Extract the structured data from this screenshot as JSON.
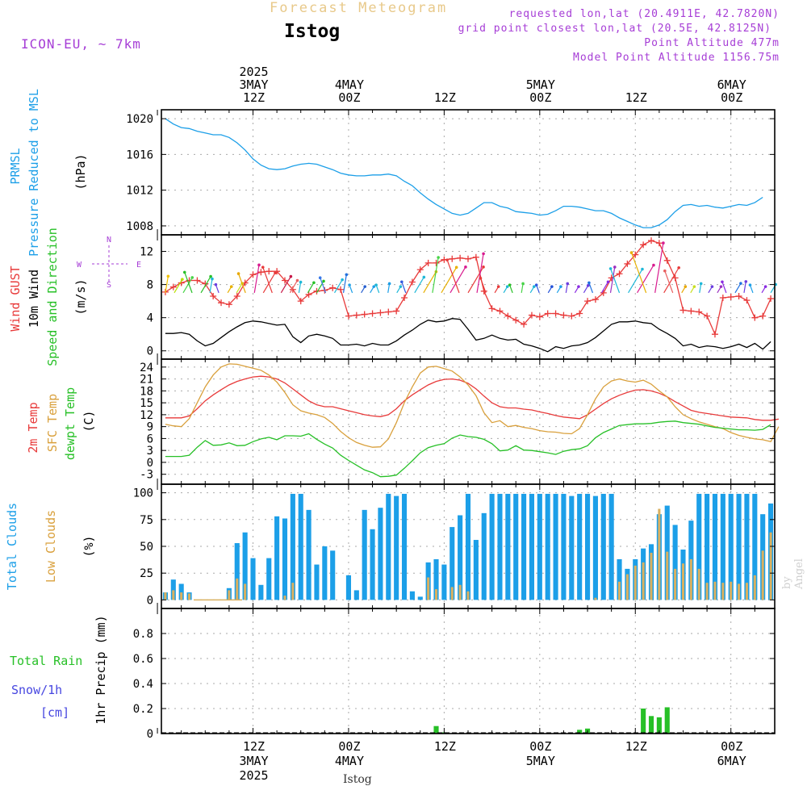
{
  "header": {
    "app_title": "Forecast Meteogram",
    "station": "Istog",
    "model": "ICON-EU, ~ 7km",
    "requested": "requested lon,lat (20.4911E, 42.7820N)",
    "grid_point": "grid point closest lon,lat (20.5E, 42.8125N)",
    "point_altitude": "Point Altitude 477m",
    "model_altitude": "Model Point Altitude 1156.75m",
    "footer_station": "Istog",
    "watermark": "by Angel"
  },
  "colors": {
    "pressure": "#1c9fe8",
    "gust": "#e83a3a",
    "wind": "#000000",
    "temp2m": "#e83a3a",
    "sfc_temp": "#d9a03c",
    "dewpt": "#27c027",
    "total_clouds": "#1c9fe8",
    "low_clouds": "#d9b060",
    "rain": "#27c027",
    "snow": "#4646e0",
    "header_purple": "#a63dd6"
  },
  "time_axis": {
    "top_labels": [
      {
        "lines": [
          "2025",
          "3MAY",
          "12Z"
        ],
        "t": 12
      },
      {
        "lines": [
          "4MAY",
          "00Z"
        ],
        "t": 24
      },
      {
        "lines": [
          "12Z"
        ],
        "t": 36
      },
      {
        "lines": [
          "5MAY",
          "00Z"
        ],
        "t": 48
      },
      {
        "lines": [
          "12Z"
        ],
        "t": 60
      },
      {
        "lines": [
          "6MAY",
          "00Z"
        ],
        "t": 72
      }
    ],
    "bottom_labels": [
      {
        "lines": [
          "12Z",
          "3MAY",
          "2025"
        ],
        "t": 12
      },
      {
        "lines": [
          "00Z",
          "4MAY"
        ],
        "t": 24
      },
      {
        "lines": [
          "12Z"
        ],
        "t": 36
      },
      {
        "lines": [
          "00Z",
          "5MAY"
        ],
        "t": 48
      },
      {
        "lines": [
          "12Z"
        ],
        "t": 60
      },
      {
        "lines": [
          "00Z",
          "6MAY"
        ],
        "t": 72
      }
    ]
  },
  "panels": {
    "pressure": {
      "labels": [
        {
          "text": "PRMSL",
          "color": "#1c9fe8"
        },
        {
          "text": "Pressure Reduced to MSL",
          "color": "#1c9fe8"
        }
      ],
      "unit": "(hPa)"
    },
    "wind": {
      "labels": [
        {
          "text": "Wind GUST",
          "color": "#e83a3a"
        },
        {
          "text": "10m Wind",
          "color": "#000000"
        },
        {
          "text": "Speed and Direction",
          "color": "#27c027"
        }
      ],
      "unit": "(m/s)",
      "compass": {
        "n": "N",
        "s": "S",
        "e": "E",
        "w": "W"
      }
    },
    "temperature": {
      "labels": [
        {
          "text": "2m Temp",
          "color": "#e83a3a"
        },
        {
          "text": "SFC Temp",
          "color": "#d9a03c"
        },
        {
          "text": "dewpt Temp",
          "color": "#27c027"
        }
      ],
      "unit": "(C)"
    },
    "clouds": {
      "labels": [
        {
          "text": "Total Clouds",
          "color": "#1c9fe8"
        },
        {
          "text": "Low Clouds",
          "color": "#d9a03c"
        }
      ],
      "unit": "(%)"
    },
    "precip": {
      "labels": [
        {
          "text": "Total  Rain",
          "color": "#27c027"
        },
        {
          "text": "Snow/1h",
          "color": "#4646e0"
        },
        {
          "text": "[cm]",
          "color": "#4646e0"
        }
      ],
      "unit": "1hr Precip (mm)"
    }
  },
  "chart_data": [
    {
      "type": "line",
      "title": "PRMSL Pressure Reduced to MSL",
      "ylabel": "(hPa)",
      "x_start_hour": 1,
      "x_step_hours": 1,
      "ylim": [
        1007,
        1021
      ],
      "yticks": [
        1008,
        1012,
        1016,
        1020
      ],
      "grid": true,
      "series": [
        {
          "name": "PRMSL",
          "values": [
            1020.0,
            1019.4,
            1019.0,
            1018.9,
            1018.6,
            1018.4,
            1018.2,
            1018.2,
            1017.9,
            1017.3,
            1016.5,
            1015.5,
            1014.8,
            1014.4,
            1014.3,
            1014.4,
            1014.7,
            1014.9,
            1015.0,
            1014.9,
            1014.6,
            1014.3,
            1013.9,
            1013.7,
            1013.6,
            1013.6,
            1013.7,
            1013.7,
            1013.8,
            1013.6,
            1013.0,
            1012.5,
            1011.7,
            1011.0,
            1010.4,
            1009.9,
            1009.4,
            1009.2,
            1009.4,
            1010.0,
            1010.6,
            1010.6,
            1010.2,
            1010.0,
            1009.6,
            1009.5,
            1009.4,
            1009.2,
            1009.3,
            1009.7,
            1010.2,
            1010.2,
            1010.1,
            1009.9,
            1009.7,
            1009.7,
            1009.4,
            1008.9,
            1008.5,
            1008.1,
            1007.8,
            1007.8,
            1008.1,
            1008.7,
            1009.6,
            1010.3,
            1010.4,
            1010.2,
            1010.3,
            1010.1,
            1010.0,
            1010.2,
            1010.4,
            1010.3,
            1010.6,
            1011.2
          ]
        }
      ]
    },
    {
      "type": "line",
      "title": "Wind GUST / 10m Wind Speed and Direction",
      "ylabel": "(m/s)",
      "x_start_hour": 1,
      "x_step_hours": 1,
      "ylim": [
        -1,
        14
      ],
      "yticks": [
        0,
        4,
        8,
        12
      ],
      "grid": true,
      "series": [
        {
          "name": "Wind GUST",
          "values": [
            7.1,
            7.7,
            8.2,
            8.5,
            8.5,
            8.1,
            6.6,
            5.8,
            5.6,
            6.6,
            8.2,
            9.2,
            9.5,
            9.6,
            9.6,
            8.5,
            7.4,
            6.0,
            6.8,
            7.2,
            7.3,
            7.6,
            7.4,
            4.2,
            4.3,
            4.4,
            4.5,
            4.6,
            4.7,
            4.8,
            6.4,
            8.3,
            9.8,
            10.6,
            10.6,
            11.0,
            11.1,
            11.2,
            11.1,
            11.3,
            7.2,
            5.1,
            4.8,
            4.2,
            3.7,
            3.2,
            4.3,
            4.1,
            4.5,
            4.5,
            4.3,
            4.2,
            4.5,
            6.0,
            6.2,
            7.0,
            8.8,
            9.3,
            10.5,
            11.6,
            12.8,
            13.3,
            13.0,
            10.9,
            8.8,
            4.9,
            4.8,
            4.7,
            4.2,
            2.0,
            6.4,
            6.5,
            6.6,
            6.1,
            4.0,
            4.2,
            6.3
          ]
        },
        {
          "name": "10m Wind",
          "values": [
            2.1,
            2.1,
            2.2,
            2.0,
            1.2,
            0.6,
            0.9,
            1.6,
            2.3,
            2.9,
            3.4,
            3.6,
            3.5,
            3.3,
            3.1,
            3.2,
            1.7,
            1.0,
            1.8,
            2.0,
            1.8,
            1.5,
            0.7,
            0.7,
            0.8,
            0.6,
            0.9,
            0.7,
            0.7,
            1.2,
            1.9,
            2.5,
            3.2,
            3.7,
            3.5,
            3.6,
            3.9,
            3.8,
            2.6,
            1.3,
            1.5,
            1.9,
            1.5,
            1.3,
            1.4,
            0.8,
            0.6,
            0.3,
            -0.1,
            0.5,
            0.3,
            0.6,
            0.7,
            1.0,
            1.6,
            2.4,
            3.2,
            3.5,
            3.5,
            3.6,
            3.4,
            3.3,
            2.6,
            2.1,
            1.5,
            0.6,
            0.8,
            0.4,
            0.6,
            0.5,
            0.3,
            0.5,
            0.8,
            0.4,
            0.9,
            0.2,
            1.1
          ]
        }
      ],
      "wind_arrow_colors": [
        "#f2c200",
        "#b7e000",
        "#48d448",
        "#27c027",
        "#27c027",
        "#1fb8d8",
        "#6b3ee0",
        "#e8b000",
        "#c8e020",
        "#e8a800",
        "#d81b8f",
        "#e83a3a",
        "#e83a3a",
        "#c81848",
        "#e86060",
        "#1fb8d8",
        "#27c027",
        "#27c027",
        "#3878e8",
        "#1fb8d8",
        "#2070e0",
        "#1c9fe8",
        "#2860d0",
        "#1c9fe8",
        "#1fb8d8",
        "#1c9fe8",
        "#1fb8d8",
        "#3058e0",
        "#1fb8d8",
        "#e8b000",
        "#48d448",
        "#e8b000",
        "#d81b8f",
        "#e83a3a",
        "#e83a3a",
        "#d81b8f",
        "#e83a3a",
        "#e83a3a",
        "#1fb8d8",
        "#27c027",
        "#48d448",
        "#1fb8d8",
        "#3058e0",
        "#2050d8",
        "#1c9fe8",
        "#6b3ee0",
        "#8a2be2",
        "#6b3ee0",
        "#2070e0",
        "#8a2be2",
        "#9b30c0",
        "#1fb8d8",
        "#1fb8d8",
        "#d81b8f",
        "#e8b000",
        "#d81b8f",
        "#e83a3a",
        "#e86060",
        "#e8a800",
        "#c8e020",
        "#1fb8d8",
        "#6b3ee0",
        "#9b30c0",
        "#8a2be2",
        "#2070e0",
        "#6b3ee0",
        "#1c9fe8",
        "#8a2be2",
        "#1fb8d8"
      ]
    },
    {
      "type": "line",
      "title": "2m Temp / SFC Temp / dewpt Temp",
      "ylabel": "(C)",
      "x_start_hour": 1,
      "x_step_hours": 1,
      "ylim": [
        -5.5,
        26
      ],
      "yticks": [
        -3,
        0,
        3,
        6,
        9,
        12,
        15,
        18,
        21,
        24
      ],
      "grid": true,
      "series": [
        {
          "name": "2m Temp",
          "values": [
            11.2,
            11.2,
            11.2,
            11.7,
            13.5,
            15.5,
            17.0,
            18.3,
            19.5,
            20.4,
            21.0,
            21.5,
            21.7,
            21.5,
            21.0,
            20.0,
            18.5,
            17.0,
            15.5,
            14.5,
            14.0,
            14.0,
            13.5,
            13.0,
            12.5,
            12.0,
            11.7,
            11.5,
            12.0,
            13.5,
            15.5,
            17.0,
            18.3,
            19.5,
            20.4,
            20.9,
            21.0,
            20.7,
            19.9,
            18.5,
            16.7,
            15.0,
            14.0,
            13.7,
            13.7,
            13.4,
            13.2,
            12.7,
            12.3,
            11.8,
            11.4,
            11.2,
            11.0,
            12.0,
            13.4,
            14.8,
            16.0,
            16.9,
            17.6,
            18.2,
            18.3,
            18.0,
            17.4,
            16.5,
            15.3,
            14.2,
            13.1,
            12.6,
            12.3,
            12.0,
            11.7,
            11.4,
            11.3,
            11.2,
            10.8,
            10.6,
            10.6,
            10.9
          ]
        },
        {
          "name": "SFC Temp",
          "values": [
            9.6,
            9.2,
            9.0,
            11.0,
            15.0,
            19.0,
            22.0,
            24.0,
            24.8,
            24.7,
            24.2,
            23.7,
            23.2,
            22.0,
            20.2,
            17.6,
            14.5,
            13.0,
            12.4,
            12.0,
            11.3,
            9.8,
            7.8,
            6.2,
            5.0,
            4.3,
            3.8,
            3.9,
            5.9,
            10.0,
            15.0,
            19.0,
            22.5,
            24.0,
            24.2,
            23.6,
            23.0,
            21.5,
            19.5,
            16.8,
            12.5,
            10.0,
            10.5,
            9.0,
            9.3,
            8.8,
            8.5,
            8.0,
            7.7,
            7.6,
            7.3,
            7.2,
            8.5,
            12.0,
            16.0,
            19.0,
            20.5,
            21.0,
            20.5,
            20.2,
            20.7,
            19.7,
            18.0,
            16.5,
            14.0,
            12.0,
            11.0,
            10.2,
            9.6,
            9.0,
            8.5,
            7.5,
            6.8,
            6.3,
            5.9,
            5.7,
            5.2,
            9.0
          ]
        },
        {
          "name": "dewpt Temp",
          "values": [
            1.5,
            1.5,
            1.5,
            1.8,
            3.8,
            5.5,
            4.3,
            4.4,
            4.9,
            4.2,
            4.3,
            5.2,
            5.9,
            6.3,
            5.7,
            6.7,
            6.7,
            6.6,
            7.2,
            5.8,
            4.6,
            3.6,
            1.8,
            0.5,
            -0.7,
            -1.9,
            -2.6,
            -3.6,
            -3.5,
            -3.2,
            -1.5,
            0.4,
            2.4,
            3.7,
            4.3,
            4.7,
            6.1,
            6.9,
            6.5,
            6.3,
            5.8,
            4.7,
            2.9,
            3.1,
            4.2,
            3.1,
            3.0,
            2.7,
            2.4,
            2.0,
            2.8,
            3.2,
            3.4,
            4.2,
            6.2,
            7.5,
            8.4,
            9.3,
            9.5,
            9.7,
            9.7,
            9.8,
            10.1,
            10.3,
            10.4,
            10.0,
            9.8,
            9.6,
            9.2,
            8.8,
            8.6,
            8.4,
            8.2,
            8.2,
            8.1,
            8.3,
            9.5
          ]
        }
      ]
    },
    {
      "type": "bar",
      "title": "Total Clouds / Low Clouds",
      "ylabel": "(%)",
      "x_start_hour": 1,
      "x_step_hours": 1,
      "ylim": [
        -8,
        108
      ],
      "yticks": [
        0,
        25,
        50,
        75,
        100
      ],
      "grid": true,
      "series": [
        {
          "name": "Total Clouds",
          "values": [
            7,
            19,
            15,
            7,
            0,
            0,
            0,
            0,
            11,
            53,
            63,
            39,
            14,
            39,
            78,
            76,
            99,
            99,
            84,
            33,
            50,
            46,
            0,
            23,
            9,
            84,
            66,
            86,
            99,
            97,
            99,
            8,
            3,
            35,
            38,
            33,
            68,
            79,
            99,
            56,
            81,
            99,
            99,
            99,
            99,
            99,
            99,
            99,
            99,
            99,
            99,
            97,
            99,
            99,
            97,
            99,
            99,
            38,
            29,
            38,
            48,
            52,
            80,
            88,
            70,
            47,
            74,
            99,
            99,
            99,
            99,
            99,
            99,
            99,
            99,
            80,
            90
          ]
        },
        {
          "name": "Low Clouds",
          "values": [
            7,
            9,
            7,
            6,
            0,
            0,
            0,
            0,
            9,
            20,
            15,
            0,
            0,
            0,
            0,
            4,
            16,
            0,
            0,
            0,
            0,
            0,
            0,
            0,
            0,
            0,
            0,
            0,
            0,
            0,
            0,
            0,
            0,
            21,
            10,
            0,
            12,
            14,
            8,
            0,
            0,
            0,
            0,
            0,
            0,
            0,
            0,
            0,
            0,
            0,
            0,
            0,
            0,
            0,
            2,
            0,
            0,
            17,
            24,
            32,
            35,
            44,
            85,
            45,
            29,
            34,
            38,
            29,
            16,
            17,
            16,
            17,
            15,
            16,
            23,
            46,
            63
          ]
        }
      ]
    },
    {
      "type": "bar",
      "title": "Total Rain / Snow/1h",
      "ylabel": "1hr Precip (mm)",
      "x_start_hour": 1,
      "x_step_hours": 1,
      "ylim": [
        0,
        1.0
      ],
      "yticks": [
        0,
        0.2,
        0.4,
        0.6,
        0.8
      ],
      "grid": true,
      "series": [
        {
          "name": "Total Rain",
          "values": [
            0,
            0,
            0,
            0,
            0,
            0,
            0,
            0,
            0,
            0,
            0,
            0,
            0,
            0,
            0,
            0,
            0,
            0,
            0,
            0,
            0,
            0,
            0,
            0,
            0,
            0,
            0,
            0,
            0,
            0,
            0,
            0,
            0,
            0,
            0.06,
            0.01,
            0,
            0,
            0,
            0,
            0,
            0,
            0,
            0,
            0,
            0,
            0,
            0,
            0,
            0,
            0,
            0,
            0.03,
            0.04,
            0,
            0,
            0,
            0,
            0,
            0,
            0.2,
            0.14,
            0.13,
            0.21,
            0,
            0,
            0,
            0,
            0,
            0,
            0,
            0,
            0,
            0,
            0,
            0,
            0
          ]
        },
        {
          "name": "Snow/1h",
          "values": []
        }
      ]
    }
  ]
}
